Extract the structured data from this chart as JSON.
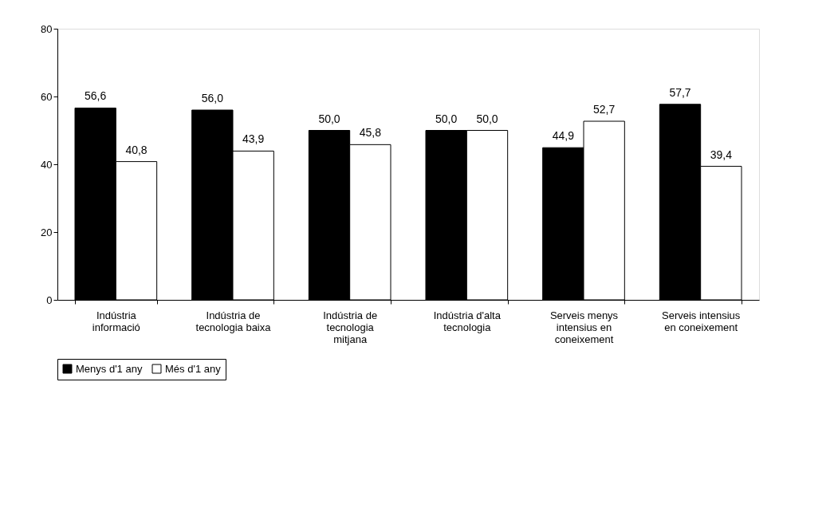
{
  "chart_data": {
    "type": "bar",
    "categories": [
      "Indústria informació",
      "Indústria de tecnologia baixa",
      "Indústria de tecnologia mitjana",
      "Indústria d'alta tecnologia",
      "Serveis menys intensius en coneixement",
      "Serveis intensius en coneixement"
    ],
    "series": [
      {
        "name": "Menys d'1 any",
        "color": "#000000",
        "values": [
          56.6,
          56.0,
          50.0,
          50.0,
          44.9,
          57.7
        ],
        "value_labels": [
          "56,6",
          "56,0",
          "50,0",
          "50,0",
          "44,9",
          "57,7"
        ]
      },
      {
        "name": "Més d'1 any",
        "color": "#ffffff",
        "values": [
          40.8,
          43.9,
          45.8,
          50.0,
          52.7,
          39.4
        ],
        "value_labels": [
          "40,8",
          "43,9",
          "45,8",
          "50,0",
          "52,7",
          "39,4"
        ]
      }
    ],
    "ylim": [
      0,
      80
    ],
    "yticks": [
      0,
      20,
      40,
      60,
      80
    ],
    "grid": false,
    "legend": "bottom"
  }
}
